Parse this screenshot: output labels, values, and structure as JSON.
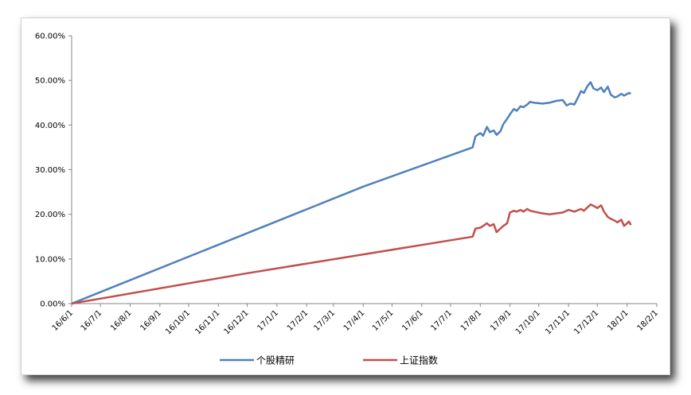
{
  "chart_data": {
    "type": "line",
    "title": "",
    "xlabel": "",
    "ylabel": "",
    "x_ticks": [
      "16/6/1",
      "16/7/1",
      "16/8/1",
      "16/9/1",
      "16/10/1",
      "16/11/1",
      "16/12/1",
      "17/1/1",
      "17/2/1",
      "17/3/1",
      "17/4/1",
      "17/5/1",
      "17/6/1",
      "17/7/1",
      "17/8/1",
      "17/9/1",
      "17/10/1",
      "17/11/1",
      "17/12/1",
      "18/1/1",
      "18/2/1"
    ],
    "y_ticks": [
      "0.00%",
      "10.00%",
      "20.00%",
      "30.00%",
      "40.00%",
      "50.00%",
      "60.00%"
    ],
    "xlim": [
      "2016-06-01",
      "2018-02-01"
    ],
    "ylim": [
      0,
      60
    ],
    "y_unit": "%",
    "grid": false,
    "legend_position": "bottom",
    "series": [
      {
        "name": "个股精研",
        "color": "#4F81BD",
        "points": [
          [
            "2016-06-01",
            0
          ],
          [
            "2017-04-01",
            26.2
          ],
          [
            "2017-07-24",
            35
          ],
          [
            "2017-07-27",
            37.5
          ],
          [
            "2017-08-01",
            38.2
          ],
          [
            "2017-08-04",
            37.6
          ],
          [
            "2017-08-08",
            39.6
          ],
          [
            "2017-08-11",
            38.4
          ],
          [
            "2017-08-15",
            38.8
          ],
          [
            "2017-08-18",
            37.8
          ],
          [
            "2017-08-22",
            38.6
          ],
          [
            "2017-08-25",
            40.2
          ],
          [
            "2017-08-29",
            41.4
          ],
          [
            "2017-09-01",
            42.4
          ],
          [
            "2017-09-05",
            43.6
          ],
          [
            "2017-09-08",
            43.2
          ],
          [
            "2017-09-12",
            44.2
          ],
          [
            "2017-09-15",
            44
          ],
          [
            "2017-09-19",
            44.6
          ],
          [
            "2017-09-22",
            45.2
          ],
          [
            "2017-09-26",
            45
          ],
          [
            "2017-10-05",
            44.8
          ],
          [
            "2017-10-12",
            45
          ],
          [
            "2017-10-19",
            45.4
          ],
          [
            "2017-10-26",
            45.6
          ],
          [
            "2017-10-30",
            44.4
          ],
          [
            "2017-11-03",
            44.8
          ],
          [
            "2017-11-07",
            44.6
          ],
          [
            "2017-11-10",
            45.8
          ],
          [
            "2017-11-14",
            47.6
          ],
          [
            "2017-11-17",
            47.2
          ],
          [
            "2017-11-21",
            48.8
          ],
          [
            "2017-11-24",
            49.6
          ],
          [
            "2017-11-27",
            48.2
          ],
          [
            "2017-12-01",
            47.8
          ],
          [
            "2017-12-05",
            48.4
          ],
          [
            "2017-12-08",
            47.4
          ],
          [
            "2017-12-12",
            48.6
          ],
          [
            "2017-12-15",
            46.8
          ],
          [
            "2017-12-19",
            46.2
          ],
          [
            "2017-12-22",
            46.4
          ],
          [
            "2017-12-26",
            47
          ],
          [
            "2017-12-29",
            46.6
          ],
          [
            "2018-01-03",
            47.2
          ],
          [
            "2018-01-05",
            47
          ]
        ]
      },
      {
        "name": "上证指数",
        "color": "#C0504D",
        "points": [
          [
            "2016-06-01",
            0
          ],
          [
            "2016-12-01",
            6.8
          ],
          [
            "2017-07-24",
            15
          ],
          [
            "2017-07-27",
            16.8
          ],
          [
            "2017-08-01",
            17
          ],
          [
            "2017-08-04",
            17.4
          ],
          [
            "2017-08-08",
            18
          ],
          [
            "2017-08-11",
            17.4
          ],
          [
            "2017-08-15",
            17.8
          ],
          [
            "2017-08-18",
            16
          ],
          [
            "2017-08-22",
            16.8
          ],
          [
            "2017-08-25",
            17.4
          ],
          [
            "2017-08-29",
            18
          ],
          [
            "2017-09-01",
            20.4
          ],
          [
            "2017-09-05",
            20.8
          ],
          [
            "2017-09-08",
            20.6
          ],
          [
            "2017-09-12",
            21
          ],
          [
            "2017-09-15",
            20.6
          ],
          [
            "2017-09-19",
            21.2
          ],
          [
            "2017-09-22",
            20.8
          ],
          [
            "2017-09-26",
            20.6
          ],
          [
            "2017-10-05",
            20.2
          ],
          [
            "2017-10-12",
            20
          ],
          [
            "2017-10-19",
            20.2
          ],
          [
            "2017-10-26",
            20.4
          ],
          [
            "2017-11-01",
            21
          ],
          [
            "2017-11-07",
            20.6
          ],
          [
            "2017-11-14",
            21.2
          ],
          [
            "2017-11-17",
            20.8
          ],
          [
            "2017-11-21",
            21.6
          ],
          [
            "2017-11-24",
            22.2
          ],
          [
            "2017-11-28",
            21.8
          ],
          [
            "2017-12-01",
            21.4
          ],
          [
            "2017-12-05",
            22
          ],
          [
            "2017-12-08",
            20.6
          ],
          [
            "2017-12-12",
            19.4
          ],
          [
            "2017-12-15",
            19
          ],
          [
            "2017-12-19",
            18.6
          ],
          [
            "2017-12-22",
            18.2
          ],
          [
            "2017-12-26",
            18.8
          ],
          [
            "2017-12-29",
            17.4
          ],
          [
            "2018-01-03",
            18.4
          ],
          [
            "2018-01-05",
            17.6
          ]
        ]
      }
    ]
  }
}
